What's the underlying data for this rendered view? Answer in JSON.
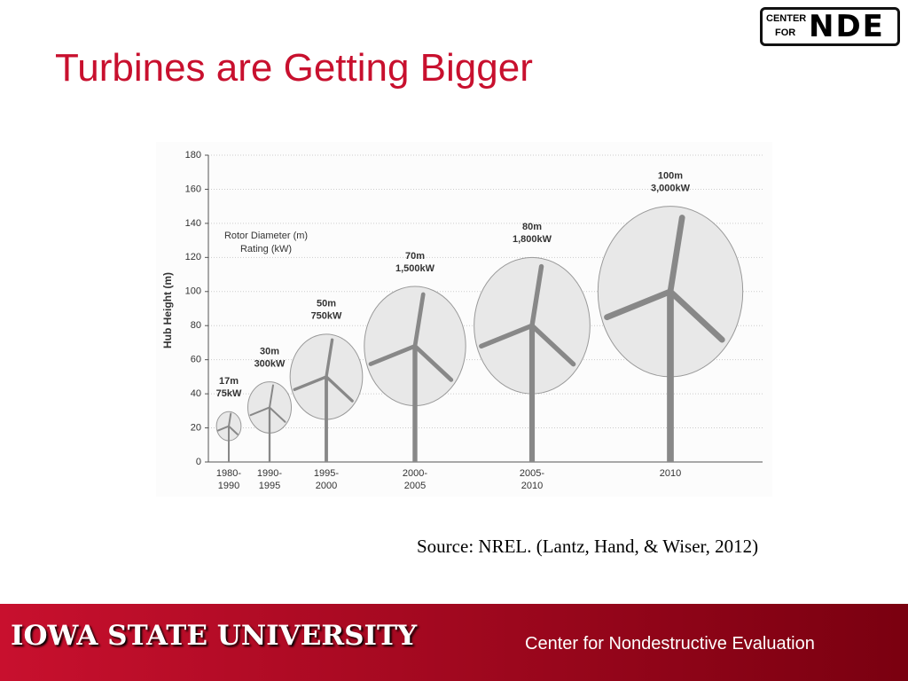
{
  "title": "Turbines are Getting Bigger",
  "logo": {
    "top": "CENTER",
    "bottom": "FOR",
    "mark": "NDE"
  },
  "chart_data": {
    "type": "turbine",
    "y_label": "Hub Height (m)",
    "legend": [
      "Rotor Diameter (m)",
      "Rating (kW)"
    ],
    "categories": [
      "1980-1990",
      "1990-1995",
      "1995-2000",
      "2000-2005",
      "2005-2010",
      "2010"
    ],
    "values": [
      21,
      32,
      50,
      68,
      80,
      100
    ],
    "rotor_diameter": [
      17,
      30,
      50,
      70,
      80,
      100
    ],
    "rotor_labels": [
      "17m",
      "30m",
      "50m",
      "70m",
      "80m",
      "100m"
    ],
    "rating": [
      75,
      300,
      750,
      1500,
      1800,
      3000
    ],
    "rating_labels": [
      "75kW",
      "300kW",
      "750kW",
      "1,500kW",
      "1,800kW",
      "3,000kW"
    ],
    "ylim": [
      0,
      180
    ],
    "yticks": [
      0,
      20,
      40,
      60,
      80,
      100,
      120,
      140,
      160,
      180
    ],
    "grid": true
  },
  "source": "Source: NREL. (Lantz, Hand, & Wiser, 2012)",
  "footer": {
    "university": "IOWA STATE UNIVERSITY",
    "center": "Center for Nondestructive Evaluation"
  }
}
